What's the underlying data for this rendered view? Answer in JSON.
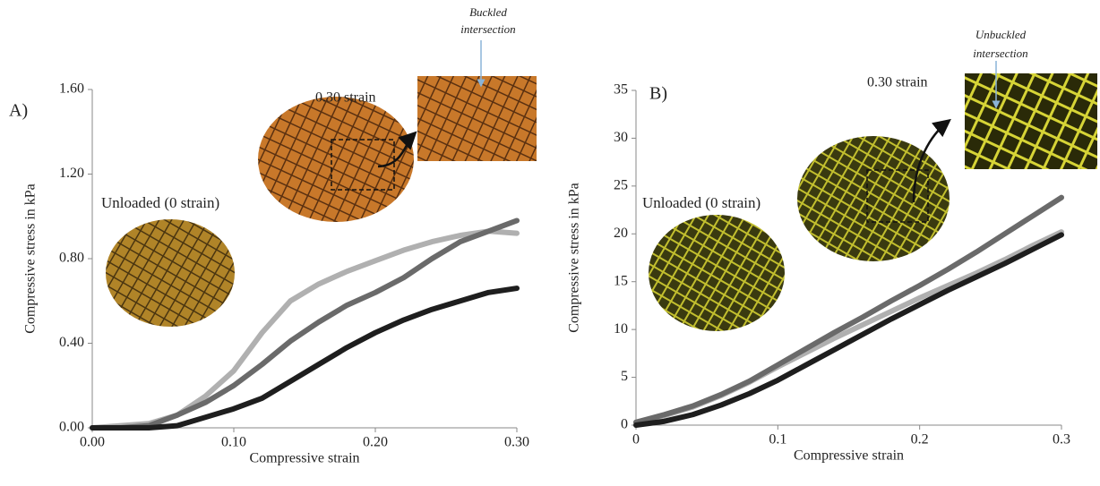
{
  "chart_data": [
    {
      "type": "line",
      "xlabel": "Compressive strain",
      "ylabel": "Compressive stress in kPa",
      "annotations": [
        "A)",
        "Unloaded (0 strain)",
        "0.30 strain",
        "Buckled",
        "intersection"
      ],
      "x": [
        0,
        0.02,
        0.04,
        0.06,
        0.08,
        0.1,
        0.12,
        0.14,
        0.16,
        0.18,
        0.2,
        0.22,
        0.24,
        0.26,
        0.28,
        0.3
      ],
      "series": [
        {
          "color": "#b0b0b0",
          "values": [
            0,
            0.01,
            0.02,
            0.06,
            0.15,
            0.27,
            0.45,
            0.6,
            0.68,
            0.74,
            0.79,
            0.84,
            0.88,
            0.91,
            0.93,
            0.92
          ]
        },
        {
          "color": "#6a6a6a",
          "values": [
            0,
            0,
            0.01,
            0.06,
            0.12,
            0.2,
            0.3,
            0.41,
            0.5,
            0.58,
            0.64,
            0.71,
            0.8,
            0.88,
            0.93,
            0.98
          ]
        },
        {
          "color": "#1e1e1e",
          "values": [
            0,
            0,
            0,
            0.01,
            0.05,
            0.09,
            0.14,
            0.22,
            0.3,
            0.38,
            0.45,
            0.51,
            0.56,
            0.6,
            0.64,
            0.66
          ]
        }
      ],
      "xlim": [
        0,
        0.3
      ],
      "xticks": [
        {
          "value": 0,
          "label": "0.00"
        },
        {
          "value": 0.1,
          "label": "0.10"
        },
        {
          "value": 0.2,
          "label": "0.20"
        },
        {
          "value": 0.3,
          "label": "0.30"
        }
      ],
      "ylim": [
        0,
        1.6
      ],
      "yticks": [
        {
          "value": 0,
          "label": "0.00"
        },
        {
          "value": 0.4,
          "label": "0.40"
        },
        {
          "value": 0.8,
          "label": "0.80"
        },
        {
          "value": 1.2,
          "label": "1.20"
        },
        {
          "value": 1.6,
          "label": "1.60"
        }
      ],
      "grid": false
    },
    {
      "type": "line",
      "xlabel": "Compressive strain",
      "ylabel": "Compressive stress in kPa",
      "annotations": [
        "B)",
        "Unloaded (0 strain)",
        "0.30 strain",
        "Unbuckled",
        "intersection"
      ],
      "x": [
        0,
        0.02,
        0.04,
        0.06,
        0.08,
        0.1,
        0.12,
        0.14,
        0.16,
        0.18,
        0.2,
        0.22,
        0.24,
        0.26,
        0.28,
        0.3
      ],
      "series": [
        {
          "color": "#b0b0b0",
          "values": [
            0.3,
            1,
            1.9,
            3.1,
            4.5,
            6.1,
            7.6,
            9.1,
            10.5,
            11.9,
            13.3,
            14.6,
            15.9,
            17.3,
            18.8,
            20.2
          ]
        },
        {
          "color": "#6a6a6a",
          "values": [
            0.3,
            1.1,
            2,
            3.2,
            4.6,
            6.3,
            8,
            9.7,
            11.3,
            13,
            14.6,
            16.3,
            18.1,
            20,
            21.9,
            23.8
          ]
        },
        {
          "color": "#1e1e1e",
          "values": [
            0,
            0.4,
            1.1,
            2.1,
            3.3,
            4.7,
            6.3,
            7.9,
            9.5,
            11.1,
            12.6,
            14.1,
            15.5,
            16.9,
            18.4,
            19.9
          ]
        }
      ],
      "xlim": [
        0,
        0.3
      ],
      "xticks": [
        0,
        0.1,
        0.2,
        0.3
      ],
      "ylim": [
        0,
        35
      ],
      "yticks": [
        0,
        5,
        10,
        15,
        20,
        25,
        30,
        35
      ],
      "grid": false
    }
  ]
}
